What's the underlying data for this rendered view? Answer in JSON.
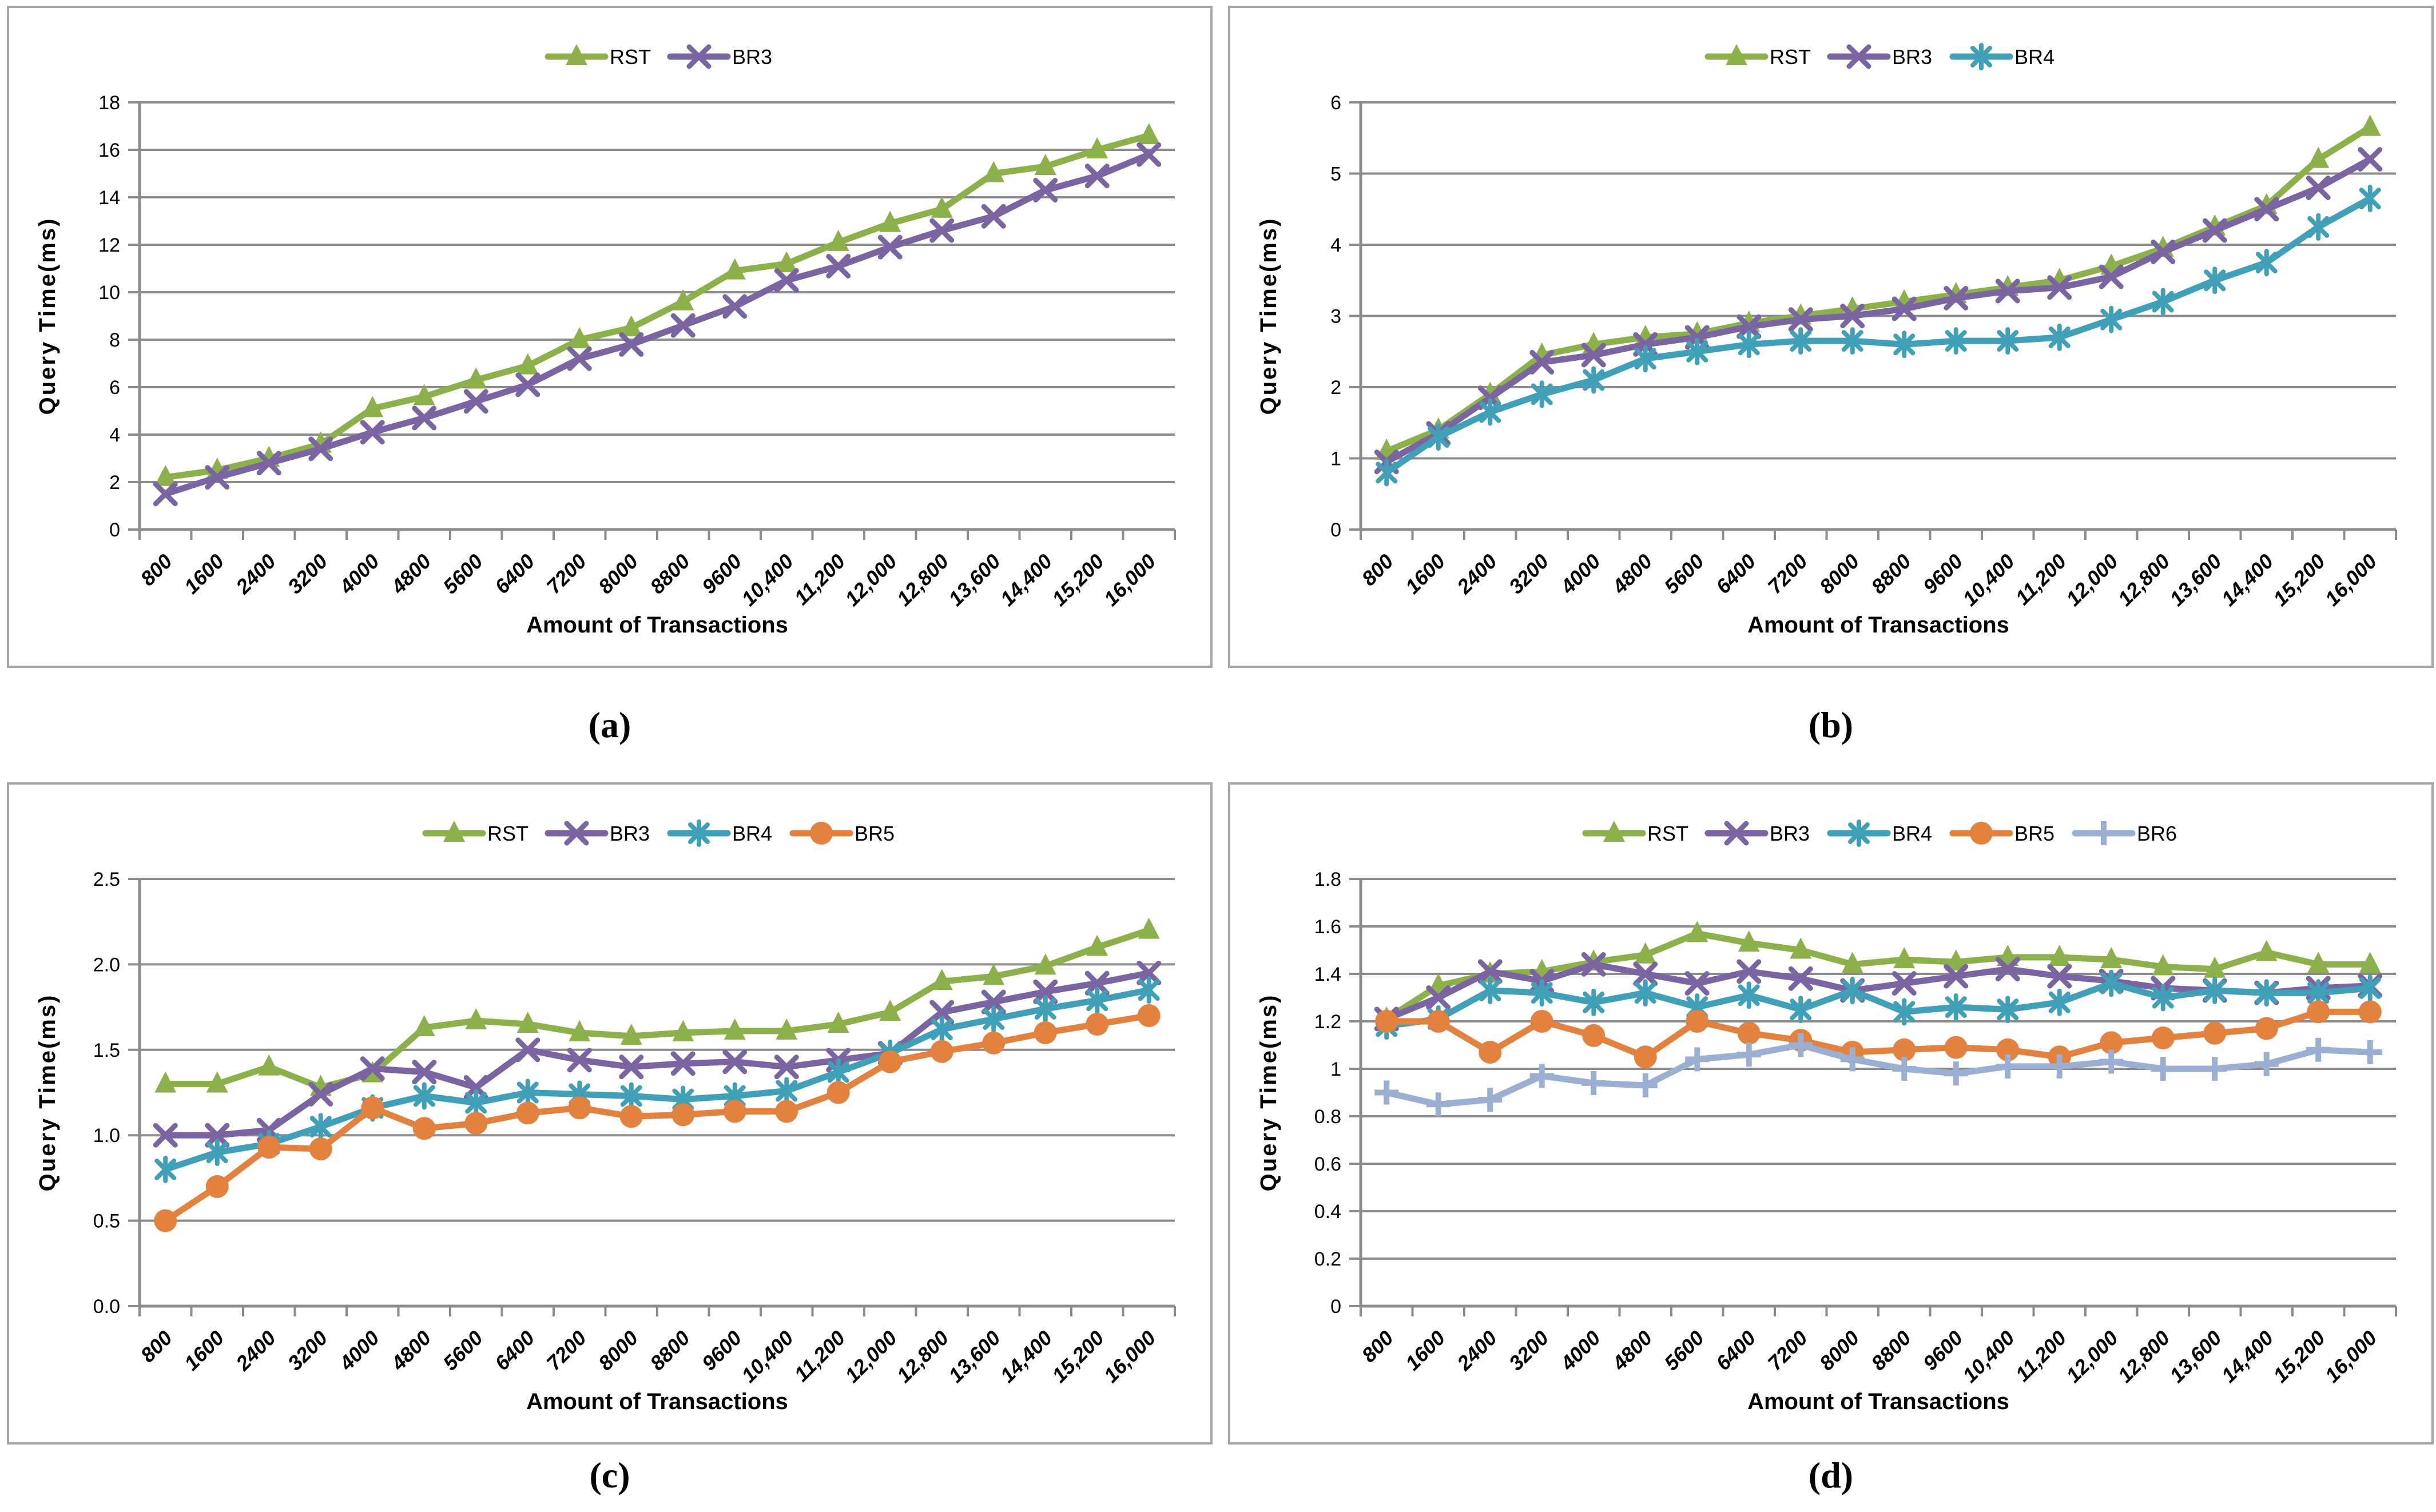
{
  "style": {
    "background": "#FFFFFF",
    "gridline_color": "#8C8C8C",
    "axis_color": "#8C8C8C",
    "panel_border_color": "#A6A6A6",
    "text_color": "#000000"
  },
  "series_colors": {
    "RST": "#8CB14B",
    "BR3": "#7A65A2",
    "BR4": "#3FA0B7",
    "BR5": "#E2823E",
    "BR6": "#9AAFD1"
  },
  "chart_data": [
    {
      "id": "a",
      "type": "line",
      "caption": "(a)",
      "title": "",
      "xlabel": "Amount of Transactions",
      "ylabel": "Query Time(ms)",
      "ylim": [
        0,
        18
      ],
      "ytick_labels": [
        "0",
        "2",
        "4",
        "6",
        "8",
        "10",
        "12",
        "14",
        "16",
        "18"
      ],
      "grid": true,
      "legend_position": "top",
      "categories": [
        "800",
        "1600",
        "2400",
        "3200",
        "4000",
        "4800",
        "5600",
        "6400",
        "7200",
        "8000",
        "8800",
        "9600",
        "10,400",
        "11,200",
        "12,000",
        "12,800",
        "13,600",
        "14,400",
        "15,200",
        "16,000"
      ],
      "series": [
        {
          "name": "RST",
          "marker": "triangle",
          "color": "#8CB14B",
          "values": [
            2.2,
            2.5,
            3.0,
            3.6,
            5.1,
            5.6,
            6.3,
            6.9,
            8.0,
            8.5,
            9.6,
            10.9,
            11.2,
            12.1,
            12.9,
            13.5,
            15.0,
            15.3,
            16.0,
            16.6
          ]
        },
        {
          "name": "BR3",
          "marker": "x",
          "color": "#7A65A2",
          "values": [
            1.5,
            2.2,
            2.8,
            3.4,
            4.1,
            4.7,
            5.4,
            6.1,
            7.2,
            7.8,
            8.6,
            9.4,
            10.5,
            11.1,
            11.9,
            12.6,
            13.2,
            14.3,
            14.9,
            15.8
          ]
        }
      ]
    },
    {
      "id": "b",
      "type": "line",
      "caption": "(b)",
      "title": "",
      "xlabel": "Amount of Transactions",
      "ylabel": "Query Time(ms)",
      "ylim": [
        0,
        6
      ],
      "ytick_labels": [
        "0",
        "1",
        "2",
        "3",
        "4",
        "5",
        "6"
      ],
      "grid": true,
      "legend_position": "top",
      "categories": [
        "800",
        "1600",
        "2400",
        "3200",
        "4000",
        "4800",
        "5600",
        "6400",
        "7200",
        "8000",
        "8800",
        "9600",
        "10,400",
        "11,200",
        "12,000",
        "12,800",
        "13,600",
        "14,400",
        "15,200",
        "16,000"
      ],
      "series": [
        {
          "name": "RST",
          "marker": "triangle",
          "color": "#8CB14B",
          "values": [
            1.1,
            1.4,
            1.9,
            2.45,
            2.6,
            2.7,
            2.75,
            2.9,
            3.0,
            3.1,
            3.2,
            3.3,
            3.4,
            3.5,
            3.7,
            3.95,
            4.25,
            4.55,
            5.2,
            5.65
          ]
        },
        {
          "name": "BR3",
          "marker": "x",
          "color": "#7A65A2",
          "values": [
            0.95,
            1.35,
            1.85,
            2.35,
            2.45,
            2.6,
            2.7,
            2.85,
            2.95,
            3.0,
            3.1,
            3.25,
            3.35,
            3.4,
            3.55,
            3.9,
            4.2,
            4.5,
            4.8,
            5.2
          ]
        },
        {
          "name": "BR4",
          "marker": "asterisk",
          "color": "#3FA0B7",
          "values": [
            0.8,
            1.3,
            1.65,
            1.9,
            2.1,
            2.4,
            2.5,
            2.6,
            2.65,
            2.65,
            2.6,
            2.65,
            2.65,
            2.7,
            2.95,
            3.2,
            3.5,
            3.75,
            4.25,
            4.65
          ]
        }
      ]
    },
    {
      "id": "c",
      "type": "line",
      "caption": "(c)",
      "title": "",
      "xlabel": "Amount of Transactions",
      "ylabel": "Query Time(ms)",
      "ylim": [
        0,
        2.5
      ],
      "ytick_labels": [
        "0.0",
        "0.5",
        "1.0",
        "1.5",
        "2.0",
        "2.5"
      ],
      "grid": true,
      "legend_position": "top",
      "categories": [
        "800",
        "1600",
        "2400",
        "3200",
        "4000",
        "4800",
        "5600",
        "6400",
        "7200",
        "8000",
        "8800",
        "9600",
        "10,400",
        "11,200",
        "12,000",
        "12,800",
        "13,600",
        "14,400",
        "15,200",
        "16,000"
      ],
      "series": [
        {
          "name": "RST",
          "marker": "triangle",
          "color": "#8CB14B",
          "values": [
            1.3,
            1.3,
            1.4,
            1.28,
            1.36,
            1.63,
            1.67,
            1.65,
            1.6,
            1.58,
            1.6,
            1.61,
            1.61,
            1.65,
            1.72,
            1.9,
            1.93,
            1.99,
            2.1,
            2.2
          ]
        },
        {
          "name": "BR3",
          "marker": "x",
          "color": "#7A65A2",
          "values": [
            1.0,
            1.0,
            1.03,
            1.24,
            1.39,
            1.37,
            1.28,
            1.5,
            1.44,
            1.4,
            1.42,
            1.43,
            1.4,
            1.44,
            1.48,
            1.72,
            1.78,
            1.84,
            1.89,
            1.95
          ]
        },
        {
          "name": "BR4",
          "marker": "asterisk",
          "color": "#3FA0B7",
          "values": [
            0.8,
            0.9,
            0.95,
            1.05,
            1.16,
            1.23,
            1.19,
            1.25,
            1.24,
            1.23,
            1.21,
            1.23,
            1.26,
            1.37,
            1.48,
            1.62,
            1.68,
            1.74,
            1.79,
            1.85
          ]
        },
        {
          "name": "BR5",
          "marker": "circle",
          "color": "#E2823E",
          "values": [
            0.5,
            0.7,
            0.93,
            0.92,
            1.16,
            1.04,
            1.07,
            1.13,
            1.16,
            1.11,
            1.12,
            1.14,
            1.14,
            1.25,
            1.43,
            1.49,
            1.54,
            1.6,
            1.65,
            1.7
          ]
        }
      ]
    },
    {
      "id": "d",
      "type": "line",
      "caption": "(d)",
      "title": "",
      "xlabel": "Amount of Transactions",
      "ylabel": "Query Time(ms)",
      "ylim": [
        0,
        1.8
      ],
      "ytick_labels": [
        "0",
        "0.2",
        "0.4",
        "0.6",
        "0.8",
        "1",
        "1.2",
        "1.4",
        "1.6",
        "1.8"
      ],
      "grid": true,
      "legend_position": "top",
      "categories": [
        "800",
        "1600",
        "2400",
        "3200",
        "4000",
        "4800",
        "5600",
        "6400",
        "7200",
        "8000",
        "8800",
        "9600",
        "10,400",
        "11,200",
        "12,000",
        "12,800",
        "13,600",
        "14,400",
        "15,200",
        "16,000"
      ],
      "series": [
        {
          "name": "RST",
          "marker": "triangle",
          "color": "#8CB14B",
          "values": [
            1.21,
            1.35,
            1.4,
            1.41,
            1.45,
            1.48,
            1.57,
            1.53,
            1.5,
            1.44,
            1.46,
            1.45,
            1.47,
            1.47,
            1.46,
            1.43,
            1.42,
            1.49,
            1.44,
            1.44
          ]
        },
        {
          "name": "BR3",
          "marker": "x",
          "color": "#7A65A2",
          "values": [
            1.21,
            1.3,
            1.41,
            1.37,
            1.44,
            1.4,
            1.36,
            1.41,
            1.38,
            1.33,
            1.36,
            1.39,
            1.42,
            1.39,
            1.37,
            1.34,
            1.33,
            1.32,
            1.34,
            1.35
          ]
        },
        {
          "name": "BR4",
          "marker": "asterisk",
          "color": "#3FA0B7",
          "values": [
            1.18,
            1.21,
            1.33,
            1.32,
            1.28,
            1.32,
            1.26,
            1.31,
            1.25,
            1.33,
            1.24,
            1.26,
            1.25,
            1.28,
            1.36,
            1.3,
            1.33,
            1.32,
            1.32,
            1.34
          ]
        },
        {
          "name": "BR5",
          "marker": "circle",
          "color": "#E2823E",
          "values": [
            1.2,
            1.2,
            1.07,
            1.2,
            1.14,
            1.05,
            1.2,
            1.15,
            1.12,
            1.07,
            1.08,
            1.09,
            1.08,
            1.05,
            1.11,
            1.13,
            1.15,
            1.17,
            1.24,
            1.24
          ]
        },
        {
          "name": "BR6",
          "marker": "plus",
          "color": "#9AAFD1",
          "values": [
            0.9,
            0.85,
            0.87,
            0.97,
            0.94,
            0.93,
            1.04,
            1.06,
            1.1,
            1.04,
            1.0,
            0.98,
            1.01,
            1.01,
            1.03,
            1.0,
            1.0,
            1.02,
            1.08,
            1.07
          ]
        }
      ]
    }
  ]
}
